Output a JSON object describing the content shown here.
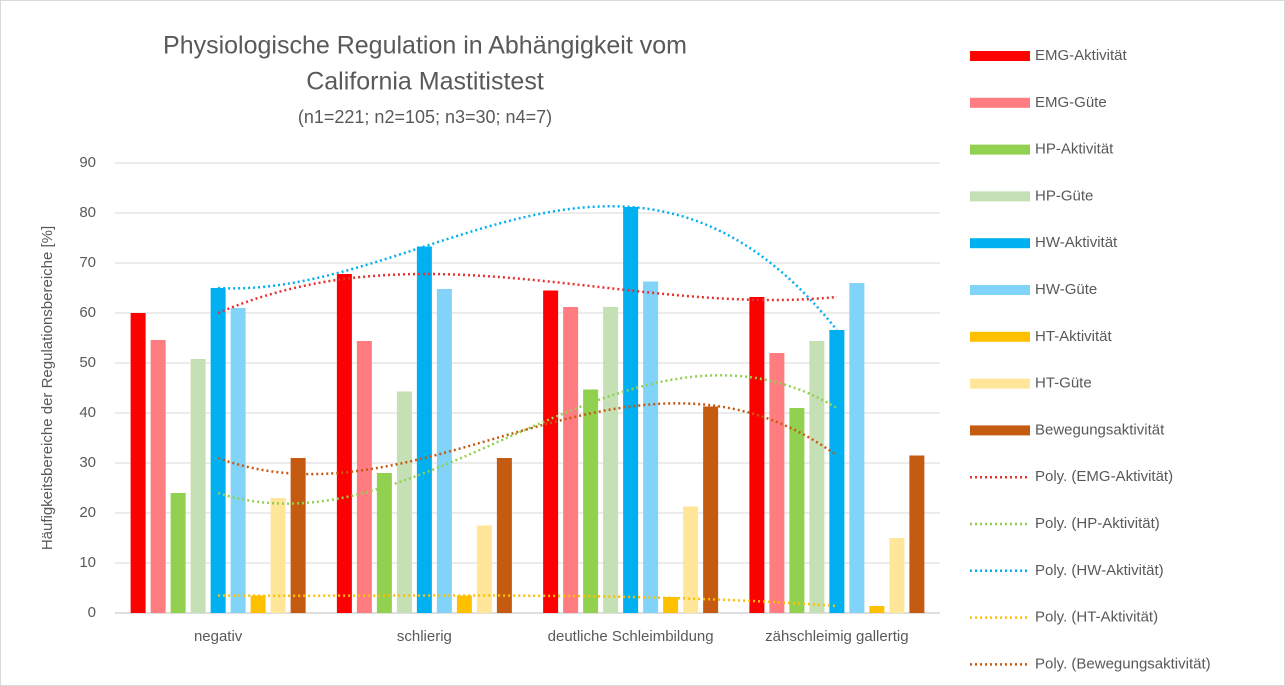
{
  "chart_data": {
    "type": "bar",
    "title": [
      "Physiologische Regulation in Abhängigkeit vom",
      "California Mastitistest"
    ],
    "subtitle": "(n1=221; n2=105; n3=30; n4=7)",
    "y_label": "Häufigkeitsbereiche der Regulationsbereiche [%]",
    "categories": [
      "negativ",
      "schlierig",
      "deutliche Schleimbildung",
      "zähschleimig gallertig"
    ],
    "ylim": [
      0,
      90
    ],
    "yticks": [
      0,
      10,
      20,
      30,
      40,
      50,
      60,
      70,
      80,
      90
    ],
    "grid": true,
    "legend": "right",
    "series": [
      {
        "name": "EMG-Aktivität",
        "color": "#ff0000",
        "values": [
          60,
          67.8,
          64.5,
          63.2
        ],
        "trendline": {
          "name": "Poly. (EMG-Aktivität)",
          "color": "#e8312f"
        }
      },
      {
        "name": "EMG-Güte",
        "color": "#ff7c80",
        "values": [
          54.6,
          54.4,
          61.2,
          52
        ]
      },
      {
        "name": "HP-Aktivität",
        "color": "#92d050",
        "values": [
          24,
          28,
          44.7,
          41
        ],
        "trendline": {
          "name": "Poly. (HP-Aktivität)",
          "color": "#92d050"
        }
      },
      {
        "name": "HP-Güte",
        "color": "#c5e0b4",
        "values": [
          50.8,
          44.3,
          61.2,
          54.4
        ]
      },
      {
        "name": "HW-Aktivität",
        "color": "#00b0f0",
        "values": [
          65,
          73.3,
          81.2,
          56.6
        ],
        "trendline": {
          "name": "Poly. (HW-Aktivität)",
          "color": "#00b0f0"
        }
      },
      {
        "name": "HW-Güte",
        "color": "#81d4f7",
        "values": [
          61,
          64.8,
          66.3,
          66
        ]
      },
      {
        "name": "HT-Aktivität",
        "color": "#ffc000",
        "values": [
          3.5,
          3.5,
          3.2,
          1.4
        ],
        "trendline": {
          "name": "Poly. (HT-Aktivität)",
          "color": "#ffc000"
        }
      },
      {
        "name": "HT-Güte",
        "color": "#ffe699",
        "values": [
          23,
          17.5,
          21.3,
          15
        ]
      },
      {
        "name": "Bewegungsaktivität",
        "color": "#c55a11",
        "values": [
          31,
          31,
          41.3,
          31.5
        ],
        "trendline": {
          "name": "Poly. (Bewegungsaktivität)",
          "color": "#c55a11"
        }
      }
    ]
  }
}
